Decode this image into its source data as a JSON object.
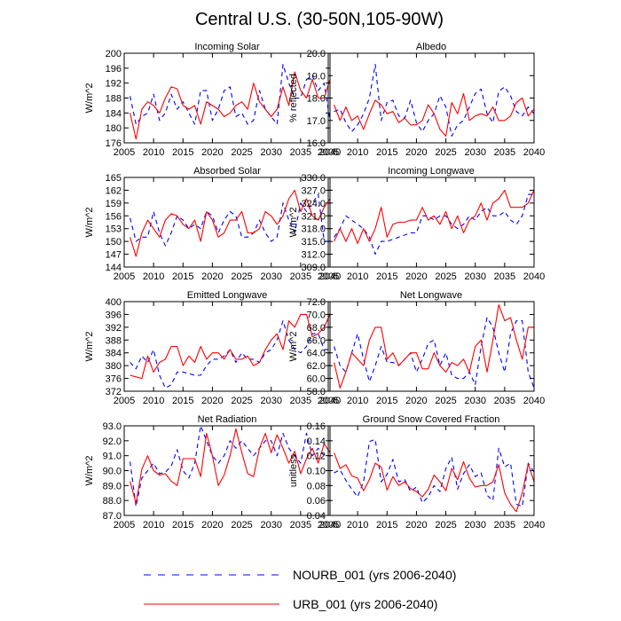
{
  "title": "Central U.S. (30-50N,105-90W)",
  "legend": [
    {
      "label": "NOURB_001 (yrs 2006-2040)",
      "color": "#0000ff",
      "dash": true
    },
    {
      "label": "URB_001 (yrs 2006-2040)",
      "color": "#ff0000",
      "dash": false
    }
  ],
  "chart_data": [
    {
      "type": "line",
      "title": "Incoming Solar",
      "ylabel": "W/m^2",
      "xlim": [
        2005,
        2040
      ],
      "ylim": [
        176,
        200
      ],
      "xticks": [
        "2005",
        "2010",
        "2015",
        "2020",
        "2025",
        "2030",
        "2035",
        "2040"
      ],
      "yticks": [
        "176",
        "180",
        "184",
        "188",
        "192",
        "196",
        "200"
      ],
      "x": [
        2006,
        2007,
        2008,
        2009,
        2010,
        2011,
        2012,
        2013,
        2014,
        2015,
        2016,
        2017,
        2018,
        2019,
        2020,
        2021,
        2022,
        2023,
        2024,
        2025,
        2026,
        2027,
        2028,
        2029,
        2030,
        2031,
        2032,
        2033,
        2034,
        2035,
        2036,
        2037,
        2038,
        2039,
        2040
      ],
      "series": [
        {
          "name": "NOURB_001 (yrs 2006-2040)",
          "values": [
            188.5,
            181,
            183,
            184,
            189,
            182,
            184,
            189,
            185,
            187,
            184,
            181,
            190,
            190,
            182,
            185,
            190,
            191,
            183,
            184,
            181,
            182,
            190,
            185,
            183,
            181,
            197,
            192,
            188,
            188,
            193,
            194,
            190,
            192,
            182
          ]
        },
        {
          "name": "URB_001 (yrs 2006-2040)",
          "values": [
            184,
            177,
            185,
            187,
            186,
            184,
            188,
            191,
            190.5,
            186,
            185,
            186,
            181,
            187,
            186,
            185,
            183,
            184,
            186,
            187,
            185,
            192,
            187,
            185,
            183,
            185,
            191,
            186,
            195,
            190,
            188,
            193,
            188,
            188,
            193
          ]
        }
      ]
    },
    {
      "type": "line",
      "title": "Albedo",
      "ylabel": "% reflected",
      "xlim": [
        2005,
        2040
      ],
      "ylim": [
        16.0,
        20.0
      ],
      "xticks": [
        "2005",
        "2010",
        "2015",
        "2020",
        "2025",
        "2030",
        "2035",
        "2040"
      ],
      "yticks": [
        "16.0",
        "17.0",
        "18.0",
        "19.0",
        "20.0"
      ],
      "x": [
        2006,
        2007,
        2008,
        2009,
        2010,
        2011,
        2012,
        2013,
        2014,
        2015,
        2016,
        2017,
        2018,
        2019,
        2020,
        2021,
        2022,
        2023,
        2024,
        2025,
        2026,
        2027,
        2028,
        2029,
        2030,
        2031,
        2032,
        2033,
        2034,
        2035,
        2036,
        2037,
        2038,
        2039,
        2040
      ],
      "series": [
        {
          "name": "NOURB_001 (yrs 2006-2040)",
          "values": [
            17.4,
            17.5,
            16.9,
            16.5,
            16.8,
            17.3,
            18.0,
            19.5,
            17.0,
            17.8,
            17.9,
            17.2,
            17.1,
            17.9,
            16.9,
            16.5,
            17.0,
            17.3,
            18.1,
            17.6,
            16.3,
            16.8,
            17.0,
            17.6,
            18.2,
            18.4,
            17.3,
            16.9,
            18.3,
            18.5,
            18.1,
            17.4,
            17.2,
            17.6,
            17.3
          ]
        },
        {
          "name": "URB_001 (yrs 2006-2040)",
          "values": [
            17.7,
            17.0,
            17.6,
            17.0,
            17.2,
            16.6,
            17.3,
            17.9,
            17.7,
            17.3,
            17.4,
            16.9,
            17.1,
            16.8,
            16.8,
            17.0,
            17.7,
            17.3,
            16.6,
            16.3,
            17.8,
            17.3,
            18.2,
            17.0,
            17.2,
            17.3,
            17.2,
            17.6,
            17.0,
            17.0,
            17.2,
            17.8,
            18.0,
            17.2,
            17.5
          ]
        }
      ]
    },
    {
      "type": "line",
      "title": "Absorbed Solar",
      "ylabel": "W/m^2",
      "xlim": [
        2005,
        2040
      ],
      "ylim": [
        144,
        165
      ],
      "xticks": [
        "2005",
        "2010",
        "2015",
        "2020",
        "2025",
        "2030",
        "2035",
        "2040"
      ],
      "yticks": [
        "144",
        "147",
        "150",
        "153",
        "156",
        "159",
        "162",
        "165"
      ],
      "x": [
        2006,
        2007,
        2008,
        2009,
        2010,
        2011,
        2012,
        2013,
        2014,
        2015,
        2016,
        2017,
        2018,
        2019,
        2020,
        2021,
        2022,
        2023,
        2024,
        2025,
        2026,
        2027,
        2028,
        2029,
        2030,
        2031,
        2032,
        2033,
        2034,
        2035,
        2036,
        2037,
        2038,
        2039,
        2040
      ],
      "series": [
        {
          "name": "NOURB_001 (yrs 2006-2040)",
          "values": [
            155.5,
            150,
            151,
            151,
            157,
            152,
            149,
            152,
            156,
            155,
            153,
            154,
            153,
            157,
            156,
            152,
            155,
            157,
            156,
            151,
            151,
            152,
            155,
            152,
            150,
            151,
            159,
            155,
            152,
            159,
            157,
            159,
            161,
            150,
            150
          ]
        },
        {
          "name": "URB_001 (yrs 2006-2040)",
          "values": [
            151,
            146.5,
            152,
            155,
            153,
            151,
            155,
            156.5,
            156,
            154,
            153,
            155,
            150,
            157,
            155,
            151,
            152,
            155,
            155,
            157,
            152,
            152,
            153,
            157,
            156,
            154,
            156,
            160,
            162,
            157,
            160,
            156,
            155,
            158,
            160
          ]
        }
      ]
    },
    {
      "type": "line",
      "title": "Incoming Longwave",
      "ylabel": "W/m^2",
      "xlim": [
        2005,
        2040
      ],
      "ylim": [
        309.0,
        330.0
      ],
      "xticks": [
        "2005",
        "2010",
        "2015",
        "2020",
        "2025",
        "2030",
        "2035",
        "2040"
      ],
      "yticks": [
        "309.0",
        "312.0",
        "315.0",
        "318.0",
        "321.0",
        "324.0",
        "327.0",
        "330.0"
      ],
      "x": [
        2006,
        2007,
        2008,
        2009,
        2010,
        2011,
        2012,
        2013,
        2014,
        2015,
        2016,
        2017,
        2018,
        2019,
        2020,
        2021,
        2022,
        2023,
        2024,
        2025,
        2026,
        2027,
        2028,
        2029,
        2030,
        2031,
        2032,
        2033,
        2034,
        2035,
        2036,
        2037,
        2038,
        2039,
        2040
      ],
      "series": [
        {
          "name": "NOURB_001 (yrs 2006-2040)",
          "values": [
            316,
            318,
            321,
            320,
            319,
            318,
            316,
            312,
            315,
            315,
            315.5,
            316,
            316.5,
            317,
            317,
            321,
            321,
            320,
            321,
            321,
            319,
            318,
            319,
            321,
            320,
            322,
            323,
            321,
            321,
            322,
            320,
            319,
            321,
            326,
            326
          ]
        },
        {
          "name": "URB_001 (yrs 2006-2040)",
          "values": [
            315,
            318,
            315,
            318,
            314.5,
            318,
            315,
            318,
            323,
            316,
            319,
            319.5,
            319.5,
            320,
            320,
            323,
            320,
            321,
            319,
            322,
            318,
            321,
            317,
            320,
            321,
            324,
            320,
            324,
            325,
            327,
            323,
            323,
            323,
            324,
            327
          ]
        }
      ]
    },
    {
      "type": "line",
      "title": "Emitted Longwave",
      "ylabel": "W/m^2",
      "xlim": [
        2005,
        2040
      ],
      "ylim": [
        372,
        400
      ],
      "xticks": [
        "2005",
        "2010",
        "2015",
        "2020",
        "2025",
        "2030",
        "2035",
        "2040"
      ],
      "yticks": [
        "372",
        "376",
        "380",
        "384",
        "388",
        "392",
        "396",
        "400"
      ],
      "x": [
        2006,
        2007,
        2008,
        2009,
        2010,
        2011,
        2012,
        2013,
        2014,
        2015,
        2016,
        2017,
        2018,
        2019,
        2020,
        2021,
        2022,
        2023,
        2024,
        2025,
        2026,
        2027,
        2028,
        2029,
        2030,
        2031,
        2032,
        2033,
        2034,
        2035,
        2036,
        2037,
        2038,
        2039,
        2040
      ],
      "series": [
        {
          "name": "NOURB_001 (yrs 2006-2040)",
          "values": [
            381,
            379,
            383,
            381,
            385,
            377,
            373,
            374,
            378,
            378,
            377.5,
            377,
            377,
            380,
            382,
            382,
            383,
            385,
            381,
            384,
            382,
            382,
            381,
            384,
            385,
            388,
            394,
            388,
            385,
            384,
            386,
            390,
            390,
            385,
            385
          ]
        },
        {
          "name": "URB_001 (yrs 2006-2040)",
          "values": [
            377,
            376.5,
            376,
            383,
            378,
            381,
            382,
            386,
            386,
            380,
            383,
            381,
            386,
            382,
            384,
            384,
            382,
            385,
            382,
            382,
            383,
            380,
            381,
            385,
            388,
            390,
            385,
            394,
            392,
            396,
            396,
            389,
            390,
            392,
            396
          ]
        }
      ]
    },
    {
      "type": "line",
      "title": "Net Longwave",
      "ylabel": "W/m^2",
      "xlim": [
        2005,
        2040
      ],
      "ylim": [
        58.0,
        72.0
      ],
      "xticks": [
        "2005",
        "2010",
        "2015",
        "2020",
        "2025",
        "2030",
        "2035",
        "2040"
      ],
      "yticks": [
        "58.0",
        "60.0",
        "62.0",
        "64.0",
        "66.0",
        "68.0",
        "70.0",
        "72.0"
      ],
      "x": [
        2006,
        2007,
        2008,
        2009,
        2010,
        2011,
        2012,
        2013,
        2014,
        2015,
        2016,
        2017,
        2018,
        2019,
        2020,
        2021,
        2022,
        2023,
        2024,
        2025,
        2026,
        2027,
        2028,
        2029,
        2030,
        2031,
        2032,
        2033,
        2034,
        2035,
        2036,
        2037,
        2038,
        2039,
        2040
      ],
      "series": [
        {
          "name": "NOURB_001 (yrs 2006-2040)",
          "values": [
            65,
            62,
            61,
            64,
            67,
            63,
            59.5,
            62,
            65,
            62.5,
            62.5,
            62,
            63,
            64,
            61,
            63,
            65.5,
            66,
            62,
            64,
            60.5,
            60,
            60,
            61,
            59,
            65,
            69.5,
            68,
            64,
            61,
            67,
            69,
            69,
            61,
            58.5
          ]
        },
        {
          "name": "URB_001 (yrs 2006-2040)",
          "values": [
            62.5,
            58.5,
            61,
            64,
            63,
            62,
            66,
            68,
            68,
            63,
            64,
            62,
            63,
            64,
            64,
            61.5,
            61.5,
            64,
            62,
            61,
            62.5,
            62,
            63,
            61,
            65,
            66,
            61,
            66,
            71.5,
            69,
            69.5,
            66,
            63,
            68,
            68
          ]
        }
      ]
    },
    {
      "type": "line",
      "title": "Net Radiation",
      "ylabel": "W/m^2",
      "xlim": [
        2005,
        2040
      ],
      "ylim": [
        87.0,
        93.0
      ],
      "xticks": [
        "2005",
        "2010",
        "2015",
        "2020",
        "2025",
        "2030",
        "2035",
        "2040"
      ],
      "yticks": [
        "87.0",
        "88.0",
        "89.0",
        "90.0",
        "91.0",
        "92.0",
        "93.0"
      ],
      "x": [
        2006,
        2007,
        2008,
        2009,
        2010,
        2011,
        2012,
        2013,
        2014,
        2015,
        2016,
        2017,
        2018,
        2019,
        2020,
        2021,
        2022,
        2023,
        2024,
        2025,
        2026,
        2027,
        2028,
        2029,
        2030,
        2031,
        2032,
        2033,
        2034,
        2035,
        2036,
        2037,
        2038,
        2039,
        2040
      ],
      "series": [
        {
          "name": "NOURB_001 (yrs 2006-2040)",
          "values": [
            90.6,
            87.6,
            89.5,
            90,
            90.5,
            89.8,
            89.9,
            90.3,
            91.4,
            90,
            89.5,
            90.5,
            93,
            92,
            91,
            90.5,
            91,
            92,
            91.5,
            92,
            91.5,
            91,
            91.5,
            92,
            92,
            91,
            92.5,
            91.5,
            91,
            90.5,
            92.5,
            91,
            91.5,
            91,
            91
          ]
        },
        {
          "name": "URB_001 (yrs 2006-2040)",
          "values": [
            89.3,
            87.8,
            90.1,
            91,
            90,
            89.7,
            89.8,
            89.3,
            89,
            90.8,
            90.8,
            90.8,
            89.6,
            92.5,
            91,
            89,
            89.7,
            91,
            92.8,
            91.2,
            89.8,
            89.6,
            91.5,
            92.5,
            91.2,
            92.4,
            91.5,
            90.5,
            91.3,
            89.8,
            90.8,
            91.5,
            90.5,
            91.8,
            91.2
          ]
        }
      ]
    },
    {
      "type": "line",
      "title": "Ground Snow Covered Fraction",
      "ylabel": "unitless",
      "xlim": [
        2005,
        2040
      ],
      "ylim": [
        0.04,
        0.16
      ],
      "xticks": [
        "2005",
        "2010",
        "2015",
        "2020",
        "2025",
        "2030",
        "2035",
        "2040"
      ],
      "yticks": [
        "0.04",
        "0.06",
        "0.08",
        "0.10",
        "0.12",
        "0.14",
        "0.16"
      ],
      "x": [
        2006,
        2007,
        2008,
        2009,
        2010,
        2011,
        2012,
        2013,
        2014,
        2015,
        2016,
        2017,
        2018,
        2019,
        2020,
        2021,
        2022,
        2023,
        2024,
        2025,
        2026,
        2027,
        2028,
        2029,
        2030,
        2031,
        2032,
        2033,
        2034,
        2035,
        2036,
        2037,
        2038,
        2039,
        2040
      ],
      "series": [
        {
          "name": "NOURB_001 (yrs 2006-2040)",
          "values": [
            0.097,
            0.101,
            0.087,
            0.075,
            0.065,
            0.085,
            0.139,
            0.142,
            0.085,
            0.095,
            0.115,
            0.085,
            0.088,
            0.072,
            0.078,
            0.057,
            0.065,
            0.08,
            0.072,
            0.103,
            0.118,
            0.075,
            0.096,
            0.108,
            0.092,
            0.097,
            0.067,
            0.06,
            0.13,
            0.105,
            0.11,
            0.055,
            0.052,
            0.11,
            0.098
          ]
        },
        {
          "name": "URB_001 (yrs 2006-2040)",
          "values": [
            0.124,
            0.103,
            0.108,
            0.093,
            0.09,
            0.073,
            0.088,
            0.11,
            0.105,
            0.074,
            0.092,
            0.08,
            0.085,
            0.076,
            0.072,
            0.065,
            0.075,
            0.094,
            0.085,
            0.073,
            0.103,
            0.088,
            0.112,
            0.09,
            0.078,
            0.08,
            0.08,
            0.085,
            0.108,
            0.07,
            0.055,
            0.045,
            0.07,
            0.109,
            0.085
          ]
        }
      ]
    }
  ]
}
